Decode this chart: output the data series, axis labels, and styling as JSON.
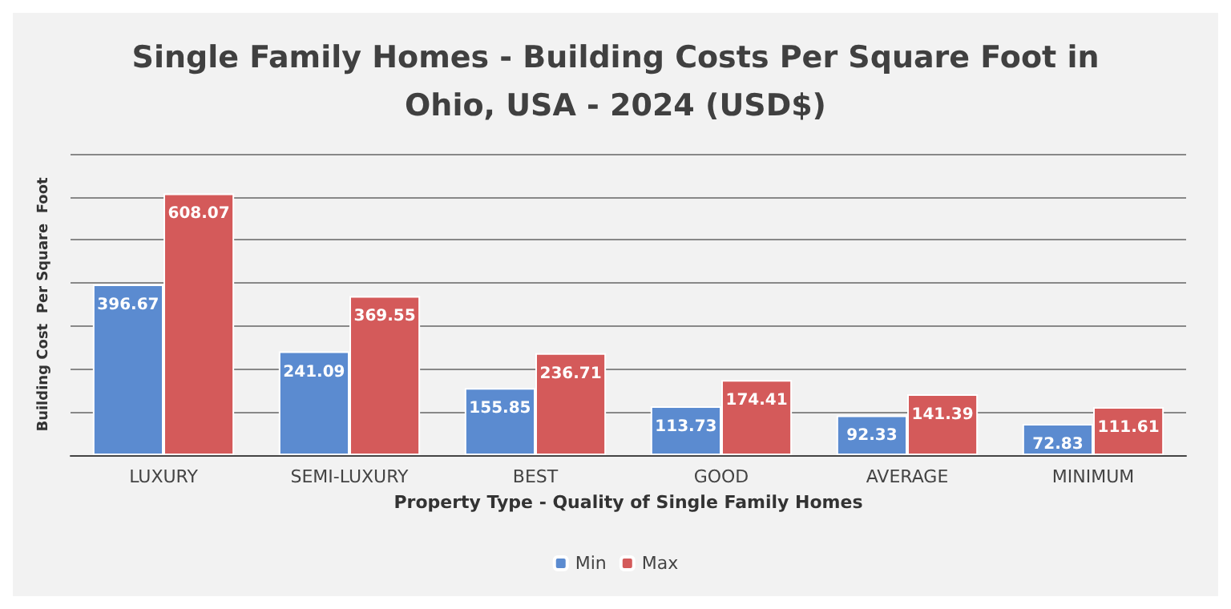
{
  "chart_data": {
    "type": "bar",
    "title": "Single Family Homes - Building Costs Per Square Foot in\nOhio, USA - 2024 (USD$)",
    "xlabel": "Property Type - Quality of Single Family Homes",
    "ylabel": "Building Cost  Per Square  Foot",
    "categories": [
      "LUXURY",
      "SEMI-LUXURY",
      "BEST",
      "GOOD",
      "AVERAGE",
      "MINIMUM"
    ],
    "series": [
      {
        "name": "Min",
        "color": "#5b8bd0",
        "values": [
          396.67,
          241.09,
          155.85,
          113.73,
          92.33,
          72.83
        ]
      },
      {
        "name": "Max",
        "color": "#d45a5a",
        "values": [
          608.07,
          369.55,
          236.71,
          174.41,
          141.39,
          111.61
        ]
      }
    ],
    "ylim": [
      0,
      700
    ],
    "yticks": [
      {
        "value": 0,
        "label": null
      },
      {
        "value": 100,
        "label": null
      },
      {
        "value": 200,
        "label": null
      },
      {
        "value": 300,
        "label": null
      },
      {
        "value": 400,
        "label": null
      },
      {
        "value": 500,
        "label": null
      },
      {
        "value": 600,
        "label": null
      },
      {
        "value": 700,
        "label": null
      }
    ],
    "tick_labels": "x",
    "grid": "y",
    "legend": "bottom",
    "data_labels": true
  }
}
